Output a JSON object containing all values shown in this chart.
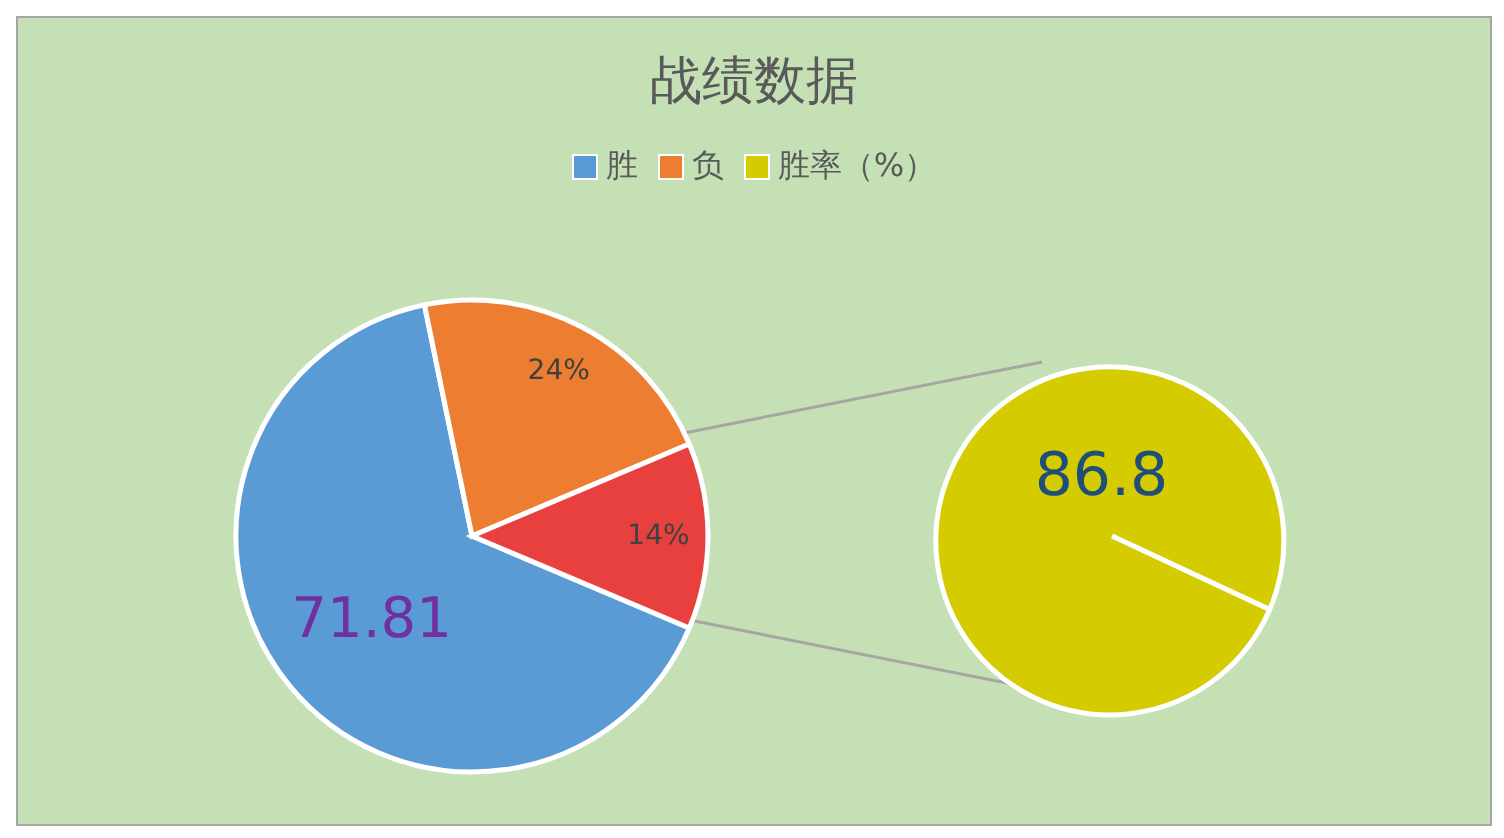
{
  "chart_data": [
    {
      "type": "pie",
      "title": "战绩数据",
      "legend": "top",
      "categories": [
        "胜",
        "负",
        null
      ],
      "values": [
        71.81,
        24,
        14
      ],
      "value_labels": [
        "71.81",
        "24%",
        "14%"
      ],
      "colors": [
        "#5b9bd5",
        "#ed7d31",
        "#e8403f"
      ]
    },
    {
      "type": "pie",
      "legend": "top",
      "categories": [
        "胜率（%）"
      ],
      "values": [
        86.8
      ],
      "value_labels": [
        "86.8"
      ],
      "colors": [
        "#d4cc00"
      ]
    }
  ]
}
